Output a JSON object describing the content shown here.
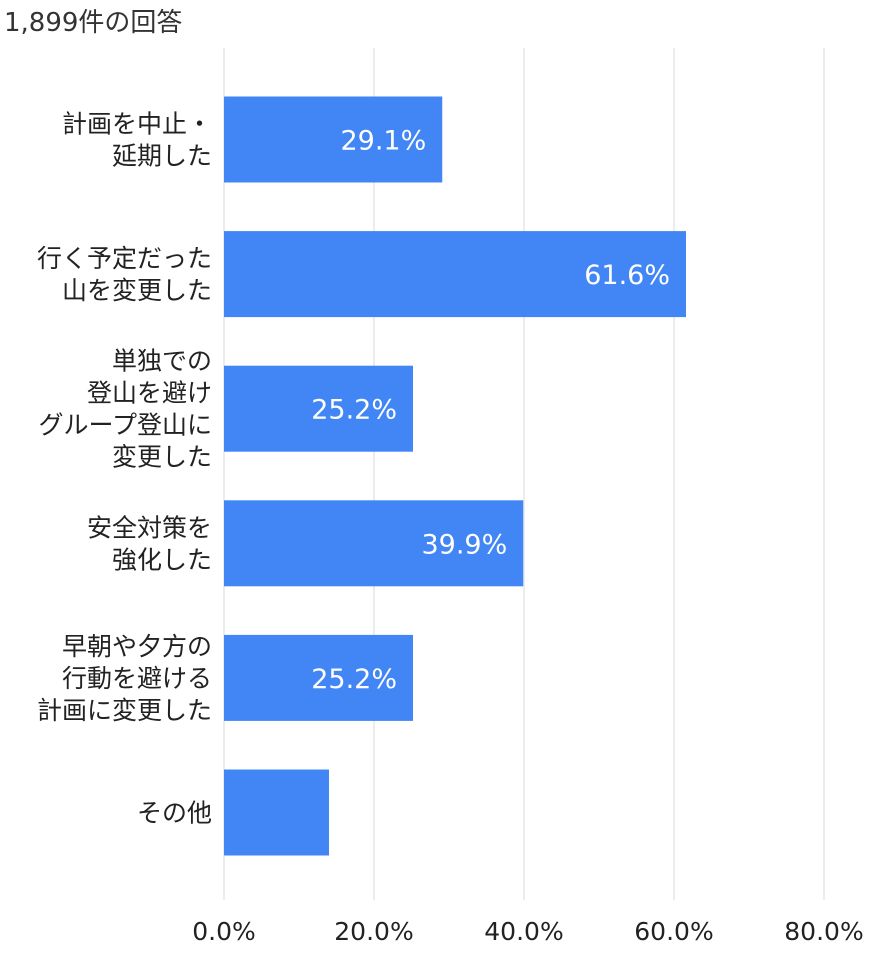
{
  "header": {
    "response_count": "1,899件の回答"
  },
  "colors": {
    "bar": "#4285f4",
    "gridline": "#e0e0e0",
    "value_label": "#ffffff",
    "axis_text": "#222222"
  },
  "chart_data": {
    "type": "bar",
    "orientation": "horizontal",
    "title": "",
    "subtitle": "1,899件の回答",
    "xlabel": "",
    "ylabel": "",
    "categories": [
      [
        "計画を中止・",
        "延期した"
      ],
      [
        "行く予定だった",
        "山を変更した"
      ],
      [
        "単独での",
        "登山を避け",
        "グループ登山に",
        "変更した"
      ],
      [
        "安全対策を",
        "強化した"
      ],
      [
        "早朝や夕方の",
        "行動を避ける",
        "計画に変更した"
      ],
      [
        "その他"
      ]
    ],
    "values": [
      29.1,
      61.6,
      25.2,
      39.9,
      25.2,
      14.0
    ],
    "value_labels": [
      "29.1%",
      "61.6%",
      "25.2%",
      "39.9%",
      "25.2%",
      ""
    ],
    "xlim": [
      0,
      80
    ],
    "xticks": [
      0,
      20,
      40,
      60,
      80
    ],
    "xtick_labels": [
      "0.0%",
      "20.0%",
      "40.0%",
      "60.0%",
      "80.0%"
    ],
    "grid": true,
    "legend": "none"
  }
}
